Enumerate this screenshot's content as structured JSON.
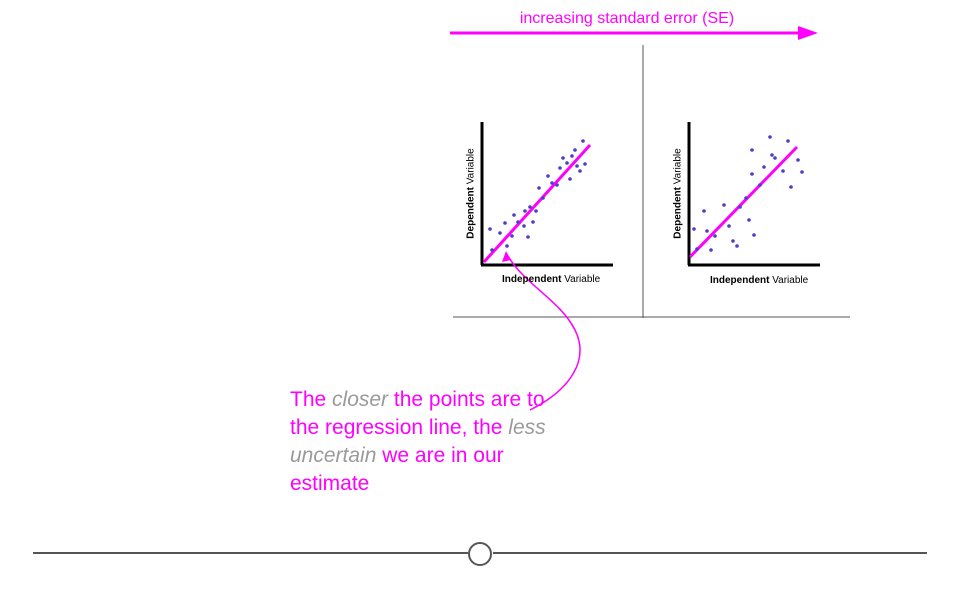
{
  "colors": {
    "accent": "#ff00ff",
    "points": "#4a3fc8",
    "muted_text": "#9a9a9a",
    "timeline": "#555555",
    "divider": "#555555"
  },
  "header": {
    "arrow_label": "increasing standard error (SE)"
  },
  "plots": [
    {
      "y_label_bold": "Dependent",
      "y_label_rest": "Variable",
      "x_label_bold": "Independent",
      "x_label_rest": "Variable"
    },
    {
      "y_label_bold": "Dependent",
      "y_label_rest": "Variable",
      "x_label_bold": "Independent",
      "x_label_rest": "Variable"
    }
  ],
  "callout": {
    "part1": "The ",
    "em1": "closer",
    "part2": " the points are to the regression line, the ",
    "em2": "less uncertain",
    "part3": " we are in our estimate"
  },
  "timeline": {
    "marker_icon": "circle-marker-icon"
  }
}
